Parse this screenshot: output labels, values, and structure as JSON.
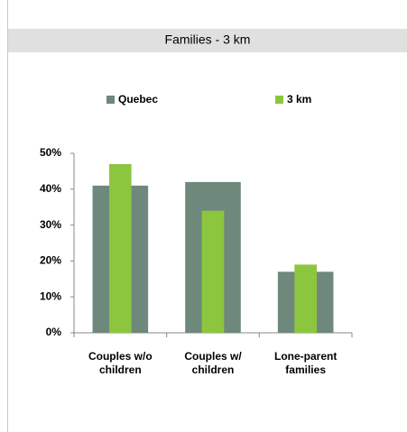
{
  "chart_data": {
    "type": "bar",
    "title": "Families - 3 km",
    "categories": [
      "Couples w/o children",
      "Couples w/ children",
      "Lone-parent families"
    ],
    "series": [
      {
        "name": "Quebec",
        "color": "#6e887c",
        "values": [
          41,
          42,
          17
        ]
      },
      {
        "name": "3 km",
        "color": "#8cc63e",
        "values": [
          47,
          34,
          19
        ]
      }
    ],
    "ylim": [
      0,
      50
    ],
    "yticks": [
      {
        "value": 0,
        "label": "0%"
      },
      {
        "value": 10,
        "label": "10%"
      },
      {
        "value": 20,
        "label": "20%"
      },
      {
        "value": 30,
        "label": "30%"
      },
      {
        "value": 40,
        "label": "40%"
      },
      {
        "value": 50,
        "label": "50%"
      }
    ],
    "legend": "top"
  }
}
